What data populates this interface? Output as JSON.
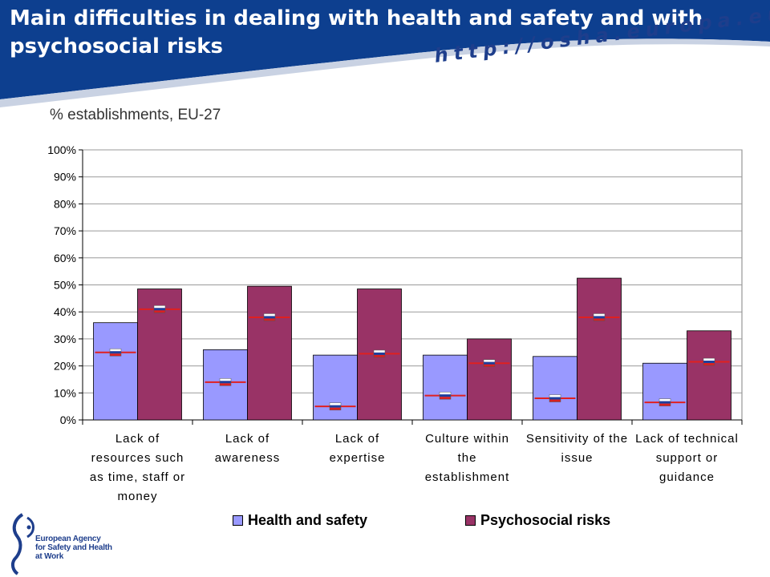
{
  "header": {
    "title": "Main difficulties in dealing with health and safety and with psychosocial risks",
    "url": "http://osha.europa.eu",
    "band_color": "#0d3f8f"
  },
  "chart_data": {
    "type": "bar",
    "subtitle": "% establishments, EU-27",
    "categories": [
      "Lack of resources such as time, staff or money",
      "Lack of awareness",
      "Lack of expertise",
      "Culture within the establishment",
      "Sensitivity of the issue",
      "Lack of technical support or guidance"
    ],
    "categories_display": [
      [
        "Lack of",
        "resources such",
        "as time, staff or",
        "money"
      ],
      [
        "Lack of",
        "awareness"
      ],
      [
        "Lack of",
        "expertise"
      ],
      [
        "Culture within",
        "the",
        "establishment"
      ],
      [
        "Sensitivity of the",
        "issue"
      ],
      [
        "Lack of technical",
        "support or",
        "guidance"
      ]
    ],
    "series": [
      {
        "name": "Health and safety",
        "values": [
          36,
          26,
          24,
          24,
          23.5,
          21
        ],
        "color": "#9999ff"
      },
      {
        "name": "Psychosocial risks",
        "values": [
          48.5,
          49.5,
          48.5,
          30,
          52.5,
          33
        ],
        "color": "#993366"
      }
    ],
    "markers": {
      "icon": "slovenia-flag-icon",
      "line_color": "#e02020",
      "health_and_safety": [
        25,
        14,
        5,
        9,
        8,
        6.5
      ],
      "psychosocial_risks": [
        41,
        38,
        24.5,
        21,
        38,
        21.5
      ]
    },
    "y_ticks": [
      "0%",
      "10%",
      "20%",
      "30%",
      "40%",
      "50%",
      "60%",
      "70%",
      "80%",
      "90%",
      "100%"
    ],
    "ylim": [
      0,
      100
    ],
    "grid": true,
    "legend_position": "bottom"
  },
  "legend": {
    "items": [
      {
        "label": "Health and safety",
        "color": "#9999ff"
      },
      {
        "label": "Psychosocial risks",
        "color": "#993366"
      }
    ]
  },
  "logo": {
    "icon": "eu-osha-logo-icon",
    "lines": [
      "European Agency",
      "for Safety and Health",
      "at Work"
    ]
  }
}
